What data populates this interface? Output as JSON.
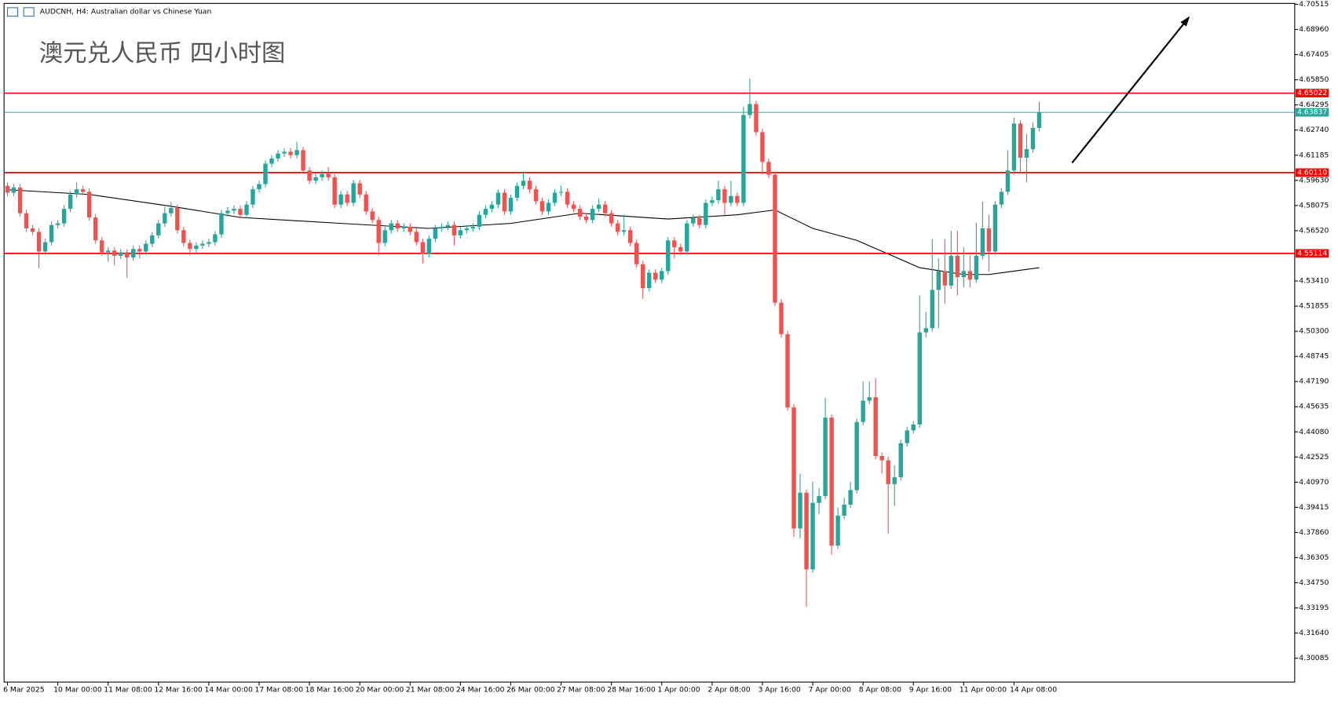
{
  "chart_data": {
    "type": "candlestick",
    "header": "AUDCNH, H4:  Australian dollar vs Chinese Yuan",
    "title": "澳元兑人民币 四小时图",
    "up_color": "#26a69a",
    "down_color": "#ef5350",
    "categories": [
      "6 Mar 2025",
      null,
      null,
      null,
      null,
      null,
      null,
      null,
      "10 Mar 00:00",
      null,
      null,
      null,
      null,
      null,
      null,
      null,
      "11 Mar 08:00",
      null,
      null,
      null,
      null,
      null,
      null,
      null,
      "12 Mar 16:00",
      null,
      null,
      null,
      null,
      null,
      null,
      null,
      "14 Mar 00:00",
      null,
      null,
      null,
      null,
      null,
      null,
      null,
      "17 Mar 08:00",
      null,
      null,
      null,
      null,
      null,
      null,
      null,
      "18 Mar 16:00",
      null,
      null,
      null,
      null,
      null,
      null,
      null,
      "20 Mar 00:00",
      null,
      null,
      null,
      null,
      null,
      null,
      null,
      "21 Mar 08:00",
      null,
      null,
      null,
      null,
      null,
      null,
      null,
      "24 Mar 16:00",
      null,
      null,
      null,
      null,
      null,
      null,
      null,
      "26 Mar 00:00",
      null,
      null,
      null,
      null,
      null,
      null,
      null,
      "27 Mar 08:00",
      null,
      null,
      null,
      null,
      null,
      null,
      null,
      "28 Mar 16:00",
      null,
      null,
      null,
      null,
      null,
      null,
      null,
      "1 Apr 00:00",
      null,
      null,
      null,
      null,
      null,
      null,
      null,
      "2 Apr 08:00",
      null,
      null,
      null,
      null,
      null,
      null,
      null,
      "3 Apr 16:00",
      null,
      null,
      null,
      null,
      null,
      null,
      null,
      "7 Apr 00:00",
      null,
      null,
      null,
      null,
      null,
      null,
      null,
      "8 Apr 08:00",
      null,
      null,
      null,
      null,
      null,
      null,
      null,
      "9 Apr 16:00",
      null,
      null,
      null,
      null,
      null,
      null,
      null,
      "11 Apr 00:00",
      null,
      null,
      null,
      null,
      null,
      null,
      null,
      "14 Apr 08:00",
      null,
      null,
      null,
      null
    ],
    "candles": [
      [
        4.5929,
        4.595,
        4.5866,
        4.5887
      ],
      [
        4.5887,
        4.594,
        4.5866,
        4.5919
      ],
      [
        4.5919,
        4.594,
        4.5739,
        4.576
      ],
      [
        4.576,
        4.5781,
        4.5645,
        4.5666
      ],
      [
        4.5666,
        4.5687,
        4.5624,
        4.5645
      ],
      [
        4.5645,
        4.5666,
        4.542,
        4.5523
      ],
      [
        4.5523,
        4.5602,
        4.5502,
        4.5581
      ],
      [
        4.5581,
        4.5708,
        4.556,
        4.5687
      ],
      [
        4.5687,
        4.5718,
        4.5666,
        4.5697
      ],
      [
        4.5697,
        4.5808,
        4.5676,
        4.5787
      ],
      [
        4.5787,
        4.5897,
        4.5766,
        4.5876
      ],
      [
        4.5876,
        4.595,
        4.5855,
        4.5908
      ],
      [
        4.5908,
        4.5929,
        4.5871,
        4.5892
      ],
      [
        4.5892,
        4.5913,
        4.5713,
        4.5734
      ],
      [
        4.5734,
        4.5755,
        4.5571,
        4.5592
      ],
      [
        4.5592,
        4.5613,
        4.5497,
        4.5518
      ],
      [
        4.5518,
        4.555,
        4.546,
        4.5529
      ],
      [
        4.5529,
        4.555,
        4.544,
        4.5497
      ],
      [
        4.5497,
        4.5539,
        4.5476,
        4.5518
      ],
      [
        4.5518,
        4.5539,
        4.536,
        4.5486
      ],
      [
        4.5486,
        4.556,
        4.5465,
        4.5539
      ],
      [
        4.5539,
        4.556,
        4.548,
        4.5523
      ],
      [
        4.5523,
        4.5592,
        4.5502,
        4.5571
      ],
      [
        4.5571,
        4.5644,
        4.555,
        4.5623
      ],
      [
        4.5623,
        4.5718,
        4.5602,
        4.5697
      ],
      [
        4.5697,
        4.58,
        4.5676,
        4.576
      ],
      [
        4.576,
        4.583,
        4.5739,
        4.5792
      ],
      [
        4.5792,
        4.5813,
        4.5634,
        4.5655
      ],
      [
        4.5655,
        4.5676,
        4.5555,
        4.5576
      ],
      [
        4.5576,
        4.5597,
        4.55,
        4.5539
      ],
      [
        4.5539,
        4.5581,
        4.5518,
        4.556
      ],
      [
        4.556,
        4.5592,
        4.5539,
        4.5571
      ],
      [
        4.5571,
        4.5602,
        4.555,
        4.5581
      ],
      [
        4.5581,
        4.565,
        4.556,
        4.5629
      ],
      [
        4.5629,
        4.5781,
        4.5608,
        4.576
      ],
      [
        4.576,
        4.5797,
        4.5739,
        4.5776
      ],
      [
        4.5776,
        4.5808,
        4.5755,
        4.5787
      ],
      [
        4.5787,
        4.5808,
        4.5729,
        4.575
      ],
      [
        4.575,
        4.5834,
        4.5729,
        4.5813
      ],
      [
        4.5813,
        4.5929,
        4.5792,
        4.5908
      ],
      [
        4.5908,
        4.5961,
        4.5887,
        4.594
      ],
      [
        4.594,
        4.6087,
        4.5919,
        4.6066
      ],
      [
        4.6066,
        4.6119,
        4.6045,
        4.6098
      ],
      [
        4.6098,
        4.615,
        4.6077,
        4.6129
      ],
      [
        4.6129,
        4.6161,
        4.6108,
        4.614
      ],
      [
        4.614,
        4.6161,
        4.6098,
        4.6119
      ],
      [
        4.6119,
        4.62,
        4.6098,
        4.615
      ],
      [
        4.615,
        4.6171,
        4.6003,
        4.6024
      ],
      [
        4.6024,
        4.6045,
        4.594,
        4.5961
      ],
      [
        4.5961,
        4.6003,
        4.594,
        4.5982
      ],
      [
        4.5982,
        4.6024,
        4.5961,
        4.6003
      ],
      [
        4.6003,
        4.6045,
        4.5961,
        4.5982
      ],
      [
        4.5982,
        4.6003,
        4.5792,
        4.5813
      ],
      [
        4.5813,
        4.5897,
        4.5792,
        4.5876
      ],
      [
        4.5876,
        4.5897,
        4.5803,
        4.5824
      ],
      [
        4.5824,
        4.5966,
        4.5803,
        4.5945
      ],
      [
        4.5945,
        4.5966,
        4.5855,
        4.5876
      ],
      [
        4.5876,
        4.5897,
        4.575,
        4.5771
      ],
      [
        4.5771,
        4.5792,
        4.5697,
        4.5718
      ],
      [
        4.5718,
        4.5739,
        4.55,
        4.5576
      ],
      [
        4.5576,
        4.5676,
        4.5555,
        4.5655
      ],
      [
        4.5655,
        4.5718,
        4.5634,
        4.5697
      ],
      [
        4.5697,
        4.5718,
        4.5645,
        4.5666
      ],
      [
        4.5666,
        4.5697,
        4.5645,
        4.5676
      ],
      [
        4.5676,
        4.5697,
        4.5624,
        4.5645
      ],
      [
        4.5645,
        4.5666,
        4.556,
        4.5581
      ],
      [
        4.5581,
        4.5602,
        4.545,
        4.5508
      ],
      [
        4.5508,
        4.5623,
        4.5487,
        4.5602
      ],
      [
        4.5602,
        4.5687,
        4.5581,
        4.5666
      ],
      [
        4.5666,
        4.5697,
        4.5645,
        4.5676
      ],
      [
        4.5676,
        4.5708,
        4.5655,
        4.5687
      ],
      [
        4.5687,
        4.5708,
        4.556,
        4.5623
      ],
      [
        4.5623,
        4.5676,
        4.5602,
        4.5655
      ],
      [
        4.5655,
        4.5687,
        4.5634,
        4.5666
      ],
      [
        4.5666,
        4.5697,
        4.5645,
        4.5676
      ],
      [
        4.5676,
        4.5771,
        4.5655,
        4.575
      ],
      [
        4.575,
        4.5808,
        4.5729,
        4.5787
      ],
      [
        4.5787,
        4.5834,
        4.5766,
        4.5813
      ],
      [
        4.5813,
        4.5908,
        4.5792,
        4.5887
      ],
      [
        4.5887,
        4.5908,
        4.575,
        4.5771
      ],
      [
        4.5771,
        4.5876,
        4.575,
        4.5855
      ],
      [
        4.5855,
        4.595,
        4.5834,
        4.5929
      ],
      [
        4.5929,
        4.601,
        4.5908,
        4.5961
      ],
      [
        4.5961,
        4.5982,
        4.5887,
        4.5908
      ],
      [
        4.5908,
        4.5929,
        4.5813,
        4.5834
      ],
      [
        4.5834,
        4.5855,
        4.575,
        4.5771
      ],
      [
        4.5771,
        4.5845,
        4.575,
        4.5824
      ],
      [
        4.5824,
        4.5908,
        4.5803,
        4.5887
      ],
      [
        4.5887,
        4.593,
        4.5866,
        4.5892
      ],
      [
        4.5892,
        4.5913,
        4.5792,
        4.5813
      ],
      [
        4.5813,
        4.5834,
        4.5766,
        4.5787
      ],
      [
        4.5787,
        4.5808,
        4.5718,
        4.5739
      ],
      [
        4.5739,
        4.576,
        4.5697,
        4.5718
      ],
      [
        4.5718,
        4.5808,
        4.5697,
        4.5787
      ],
      [
        4.5787,
        4.585,
        4.5766,
        4.5813
      ],
      [
        4.5813,
        4.5834,
        4.5739,
        4.576
      ],
      [
        4.576,
        4.5781,
        4.5676,
        4.5697
      ],
      [
        4.5697,
        4.5718,
        4.5624,
        4.5645
      ],
      [
        4.5645,
        4.575,
        4.5624,
        4.5655
      ],
      [
        4.5655,
        4.5676,
        4.5555,
        4.5576
      ],
      [
        4.5576,
        4.5597,
        4.5423,
        4.5444
      ],
      [
        4.5444,
        4.5465,
        4.523,
        4.5297
      ],
      [
        4.5297,
        4.5413,
        4.5276,
        4.5392
      ],
      [
        4.5392,
        4.5413,
        4.5328,
        4.5349
      ],
      [
        4.5349,
        4.5423,
        4.5328,
        4.5402
      ],
      [
        4.5402,
        4.5613,
        4.5381,
        4.5592
      ],
      [
        4.5592,
        4.5613,
        4.548,
        4.555
      ],
      [
        4.555,
        4.5571,
        4.5502,
        4.5523
      ],
      [
        4.5523,
        4.5718,
        4.5502,
        4.5697
      ],
      [
        4.5697,
        4.575,
        4.5676,
        4.5729
      ],
      [
        4.5729,
        4.575,
        4.5666,
        4.5687
      ],
      [
        4.5687,
        4.5845,
        4.5666,
        4.5824
      ],
      [
        4.5824,
        4.5861,
        4.5803,
        4.584
      ],
      [
        4.584,
        4.596,
        4.5819,
        4.5908
      ],
      [
        4.5908,
        4.5929,
        4.575,
        4.5824
      ],
      [
        4.5824,
        4.596,
        4.5803,
        4.5866
      ],
      [
        4.5866,
        4.5887,
        4.5803,
        4.5824
      ],
      [
        4.5824,
        4.642,
        4.5803,
        4.6367
      ],
      [
        4.6367,
        4.6593,
        4.6346,
        4.6435
      ],
      [
        4.6435,
        4.6456,
        4.624,
        4.6261
      ],
      [
        4.6261,
        4.6282,
        4.6,
        4.6077
      ],
      [
        4.6077,
        4.6098,
        4.5977,
        4.5998
      ],
      [
        4.5998,
        4.6019,
        4.5186,
        4.5207
      ],
      [
        4.5207,
        4.5228,
        4.4991,
        4.5012
      ],
      [
        4.5012,
        4.5033,
        4.4538,
        4.4559
      ],
      [
        4.4559,
        4.458,
        4.376,
        4.3811
      ],
      [
        4.3811,
        4.415,
        4.375,
        4.4032
      ],
      [
        4.4032,
        4.4053,
        4.3325,
        4.3558
      ],
      [
        4.3558,
        4.41,
        4.3537,
        4.3969
      ],
      [
        4.3969,
        4.406,
        4.39,
        4.4011
      ],
      [
        4.4011,
        4.462,
        4.399,
        4.4496
      ],
      [
        4.4496,
        4.4517,
        4.365,
        4.3705
      ],
      [
        4.3705,
        4.394,
        4.3684,
        4.389
      ],
      [
        4.389,
        4.4,
        4.3869,
        4.3958
      ],
      [
        4.3958,
        4.41,
        4.3937,
        4.4048
      ],
      [
        4.4048,
        4.449,
        4.4027,
        4.4469
      ],
      [
        4.4469,
        4.472,
        4.4448,
        4.4601
      ],
      [
        4.4601,
        4.472,
        4.458,
        4.4622
      ],
      [
        4.4622,
        4.474,
        4.4238,
        4.4259
      ],
      [
        4.4259,
        4.428,
        4.415,
        4.4232
      ],
      [
        4.4232,
        4.4253,
        4.378,
        4.4085
      ],
      [
        4.4085,
        4.42,
        4.395,
        4.4127
      ],
      [
        4.4127,
        4.4359,
        4.4106,
        4.4338
      ],
      [
        4.4338,
        4.4438,
        4.4317,
        4.4417
      ],
      [
        4.4417,
        4.4475,
        4.4396,
        4.4454
      ],
      [
        4.4454,
        4.525,
        4.4433,
        4.5023
      ],
      [
        4.5023,
        4.515,
        4.499,
        4.5049
      ],
      [
        4.5049,
        4.56,
        4.5028,
        4.5286
      ],
      [
        4.5286,
        4.548,
        4.505,
        4.5402
      ],
      [
        4.5402,
        4.56,
        4.52,
        4.5313
      ],
      [
        4.5313,
        4.565,
        4.5292,
        4.5497
      ],
      [
        4.5497,
        4.565,
        4.525,
        4.5365
      ],
      [
        4.5365,
        4.555,
        4.53,
        4.5402
      ],
      [
        4.5402,
        4.55,
        4.53,
        4.5349
      ],
      [
        4.5349,
        4.57,
        4.5328,
        4.5497
      ],
      [
        4.5497,
        4.583,
        4.5476,
        4.5666
      ],
      [
        4.5666,
        4.575,
        4.54,
        4.5523
      ],
      [
        4.5523,
        4.5834,
        4.5502,
        4.5813
      ],
      [
        4.5813,
        4.5913,
        4.5792,
        4.5892
      ],
      [
        4.5892,
        4.615,
        4.5871,
        4.6024
      ],
      [
        4.6024,
        4.635,
        4.6003,
        4.6314
      ],
      [
        4.6314,
        4.6335,
        4.6003,
        4.6103
      ],
      [
        4.6103,
        4.625,
        4.595,
        4.6156
      ],
      [
        4.6156,
        4.632,
        4.6135,
        4.6287
      ],
      [
        4.6287,
        4.645,
        4.6266,
        4.6384
      ]
    ],
    "ma": {
      "color": "#000000",
      "x": [
        0,
        13,
        26,
        37,
        53,
        67,
        80,
        91,
        105,
        116,
        122,
        128,
        135,
        140,
        145,
        152,
        156,
        160,
        164
      ],
      "values": [
        4.5905,
        4.5876,
        4.5803,
        4.5734,
        4.5697,
        4.5666,
        4.5697,
        4.576,
        4.5724,
        4.575,
        4.578,
        4.5666,
        4.5592,
        4.5508,
        4.5423,
        4.5381,
        4.5381,
        4.5402,
        4.5423
      ]
    },
    "hlines": [
      {
        "value": 4.65022,
        "color": "#ff0000"
      },
      {
        "value": 4.63837,
        "color": "#26a69a"
      },
      {
        "value": 4.6011,
        "label": "4.60110",
        "color": "#ff0000"
      },
      {
        "value": 4.55114,
        "color": "#ff0000"
      }
    ],
    "ylim": [
      4.2861,
      4.7057
    ],
    "yticks": [
      4.70515,
      {
        "value": 4.6896,
        "label": "4.68960"
      },
      4.67405,
      {
        "value": 4.6585,
        "label": "4.65850"
      },
      4.64295,
      {
        "value": 4.6274,
        "label": "4.62740"
      },
      4.61185,
      {
        "value": 4.5963,
        "label": "4.59630"
      },
      4.58075,
      {
        "value": 4.5652,
        "label": "4.56520"
      },
      {
        "value": 4.5341,
        "label": "4.53410"
      },
      4.51855,
      {
        "value": 4.503,
        "label": "4.50300"
      },
      4.48745,
      {
        "value": 4.4719,
        "label": "4.47190"
      },
      4.45635,
      {
        "value": 4.4408,
        "label": "4.44080"
      },
      4.42525,
      {
        "value": 4.4097,
        "label": "4.40970"
      },
      4.39415,
      {
        "value": 4.3786,
        "label": "4.37860"
      },
      4.36305,
      {
        "value": 4.3475,
        "label": "4.34750"
      },
      4.33195,
      {
        "value": 4.3164,
        "label": "4.31640"
      },
      4.30085
    ]
  }
}
